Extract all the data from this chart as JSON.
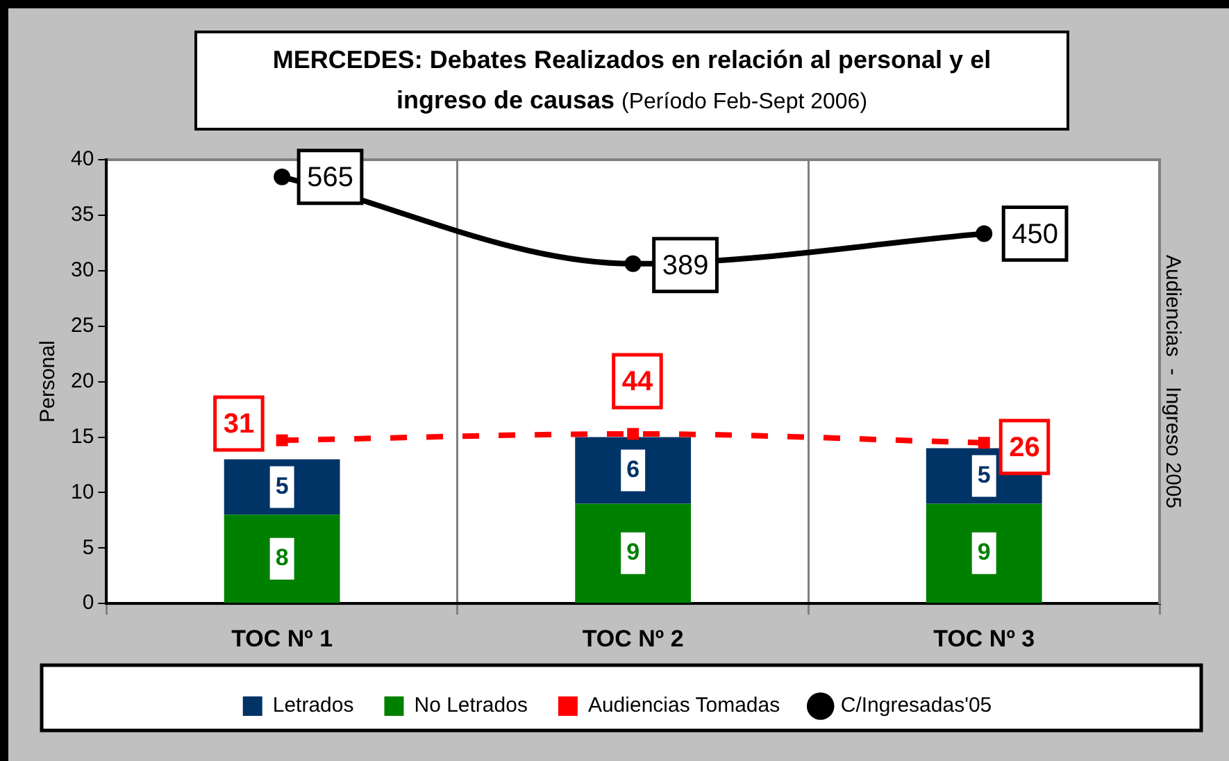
{
  "chart_data": {
    "type": "bar",
    "title": "MERCEDES: Debates Realizados en relación al personal y el ingreso de causas",
    "subtitle": "(Período Feb-Sept 2006)",
    "ylabel": "Personal",
    "y2label": "Audiencias  -  Ingreso 2005",
    "categories": [
      "TOC Nº 1",
      "TOC Nº 2",
      "TOC Nº 3"
    ],
    "series": [
      {
        "name": "No Letrados",
        "color": "#008000",
        "values": [
          8,
          9,
          9
        ]
      },
      {
        "name": "Letrados",
        "color": "#003366",
        "values": [
          5,
          6,
          5
        ]
      },
      {
        "name": "Audiencias Tomadas",
        "type": "line",
        "axis": "y2",
        "color": "#ff0000",
        "marker": "square",
        "line_style": "dashed",
        "values": [
          31,
          44,
          26
        ]
      },
      {
        "name": "C/Ingresadas'05",
        "type": "line",
        "axis": "y2",
        "color": "#000000",
        "marker": "circle",
        "line_style": "solid",
        "values": [
          565,
          389,
          450
        ]
      }
    ],
    "stacked": true,
    "ylim": [
      0,
      40
    ],
    "yticks": [
      0,
      5,
      10,
      15,
      20,
      25,
      30,
      35,
      40
    ],
    "y2lim": [
      -300,
      600
    ],
    "grid": "x",
    "legend": "bottom",
    "data_labels": true
  }
}
